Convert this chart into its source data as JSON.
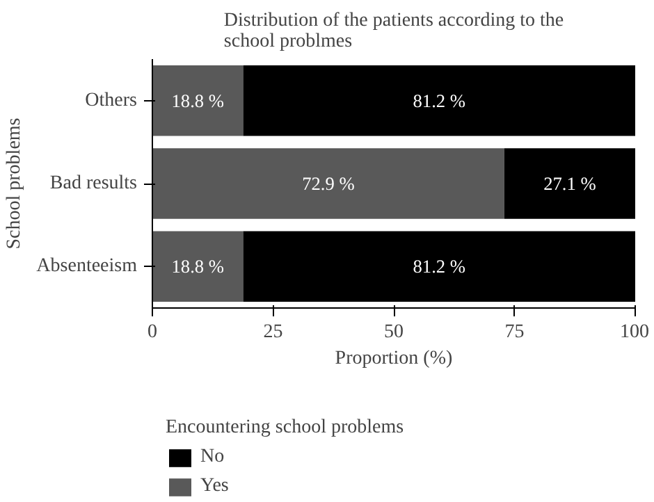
{
  "chart_data": {
    "type": "bar",
    "orientation": "horizontal",
    "stacked": true,
    "title": "Distribution of the patients according to the school problmes",
    "xlabel": "Proportion (%)",
    "ylabel": "School problems",
    "legend_title": "Encountering school problems",
    "categories": [
      "Others",
      "Bad results",
      "Absenteeism"
    ],
    "series": [
      {
        "name": "Yes",
        "color": "#595959",
        "values": [
          18.8,
          72.9,
          18.8
        ],
        "value_labels": [
          "18.8 %",
          "72.9 %",
          "18.8 %"
        ]
      },
      {
        "name": "No",
        "color": "#000000",
        "values": [
          81.2,
          27.1,
          81.2
        ],
        "value_labels": [
          "81.2 %",
          "27.1 %",
          "81.2 %"
        ]
      }
    ],
    "xlim": [
      0,
      100
    ],
    "xticks": [
      0,
      25,
      50,
      75,
      100
    ],
    "grid": false,
    "legend": "bottom"
  }
}
